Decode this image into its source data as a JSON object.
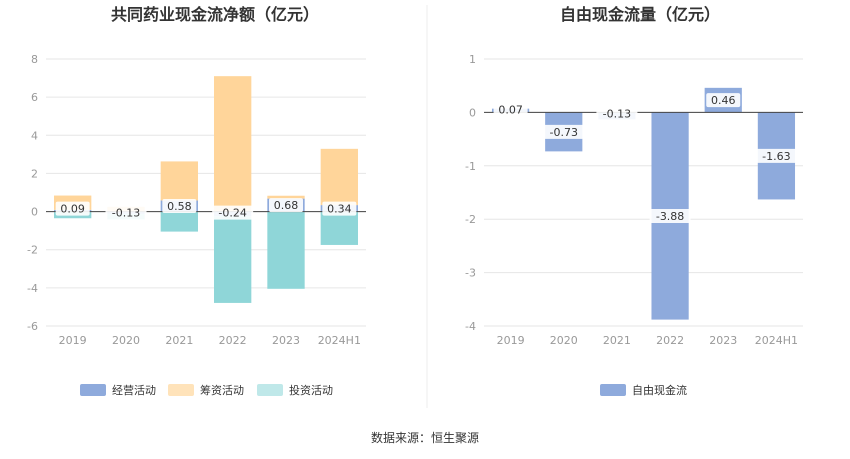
{
  "source": "数据来源：恒生聚源",
  "chart_data": [
    {
      "type": "bar",
      "stacked": true,
      "title": "共同药业现金流净额（亿元）",
      "categories": [
        "2019",
        "2020",
        "2021",
        "2022",
        "2023",
        "2024H1"
      ],
      "yticks": [
        8,
        6,
        4,
        2,
        0,
        -2,
        -4,
        -6
      ],
      "ylim": [
        -6,
        8
      ],
      "grid": true,
      "legend": "bottom",
      "series": [
        {
          "name": "经营活动",
          "color": "#8eaadc",
          "values": [
            0.09,
            -0.13,
            0.58,
            -0.24,
            0.68,
            0.34
          ]
        },
        {
          "name": "筹资活动",
          "color": "#ffd59a",
          "values": [
            0.75,
            0.25,
            2.05,
            7.1,
            0.15,
            2.95
          ]
        },
        {
          "name": "投资活动",
          "color": "#8fd6d8",
          "values": [
            -0.35,
            -0.28,
            -1.05,
            -4.55,
            -4.05,
            -1.75
          ]
        }
      ],
      "data_labels": [
        "0.09",
        "-0.13",
        "0.58",
        "-0.24",
        "0.68",
        "0.34"
      ]
    },
    {
      "type": "bar",
      "title": "自由现金流量（亿元）",
      "categories": [
        "2019",
        "2020",
        "2021",
        "2022",
        "2023",
        "2024H1"
      ],
      "yticks": [
        1,
        0,
        -1,
        -2,
        -3,
        -4
      ],
      "ylim": [
        -4,
        1
      ],
      "grid": true,
      "legend": "bottom",
      "series": [
        {
          "name": "自由现金流",
          "color": "#8eaadc",
          "values": [
            0.07,
            -0.73,
            -0.13,
            -3.88,
            0.46,
            -1.63
          ]
        }
      ],
      "data_labels": [
        "0.07",
        "-0.73",
        "-0.13",
        "-3.88",
        "0.46",
        "-1.63"
      ]
    }
  ]
}
